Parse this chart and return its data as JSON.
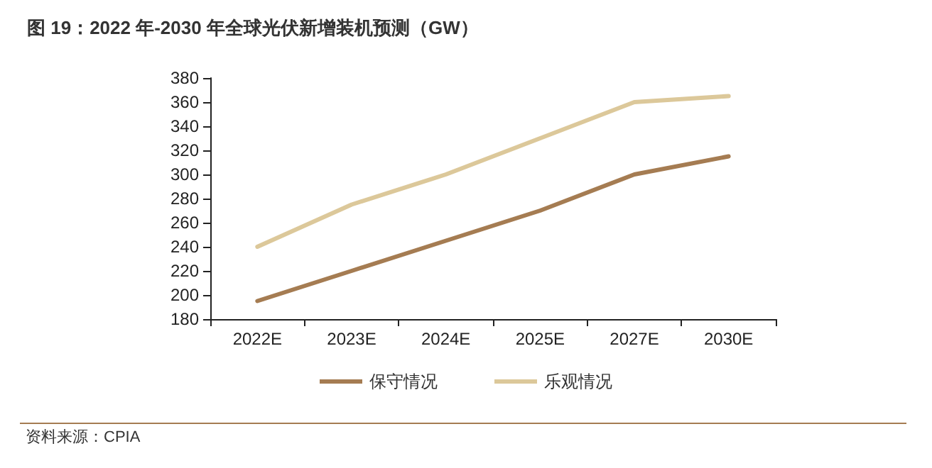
{
  "chart_data": {
    "type": "line",
    "title": "图 19：2022 年-2030 年全球光伏新增装机预测（GW）",
    "categories": [
      "2022E",
      "2023E",
      "2024E",
      "2025E",
      "2027E",
      "2030E"
    ],
    "series": [
      {
        "name": "保守情况",
        "color": "#a57c52",
        "values": [
          195,
          220,
          245,
          270,
          300,
          315
        ]
      },
      {
        "name": "乐观情况",
        "color": "#dcc89a",
        "values": [
          240,
          275,
          300,
          330,
          360,
          365
        ]
      }
    ],
    "ylim": [
      180,
      380
    ],
    "yticks": [
      180,
      200,
      220,
      240,
      260,
      280,
      300,
      320,
      340,
      360,
      380
    ],
    "grid": false,
    "legend": "bottom",
    "marker": "none",
    "line_style": "solid",
    "annotations": [
      "资料来源：CPIA"
    ]
  }
}
